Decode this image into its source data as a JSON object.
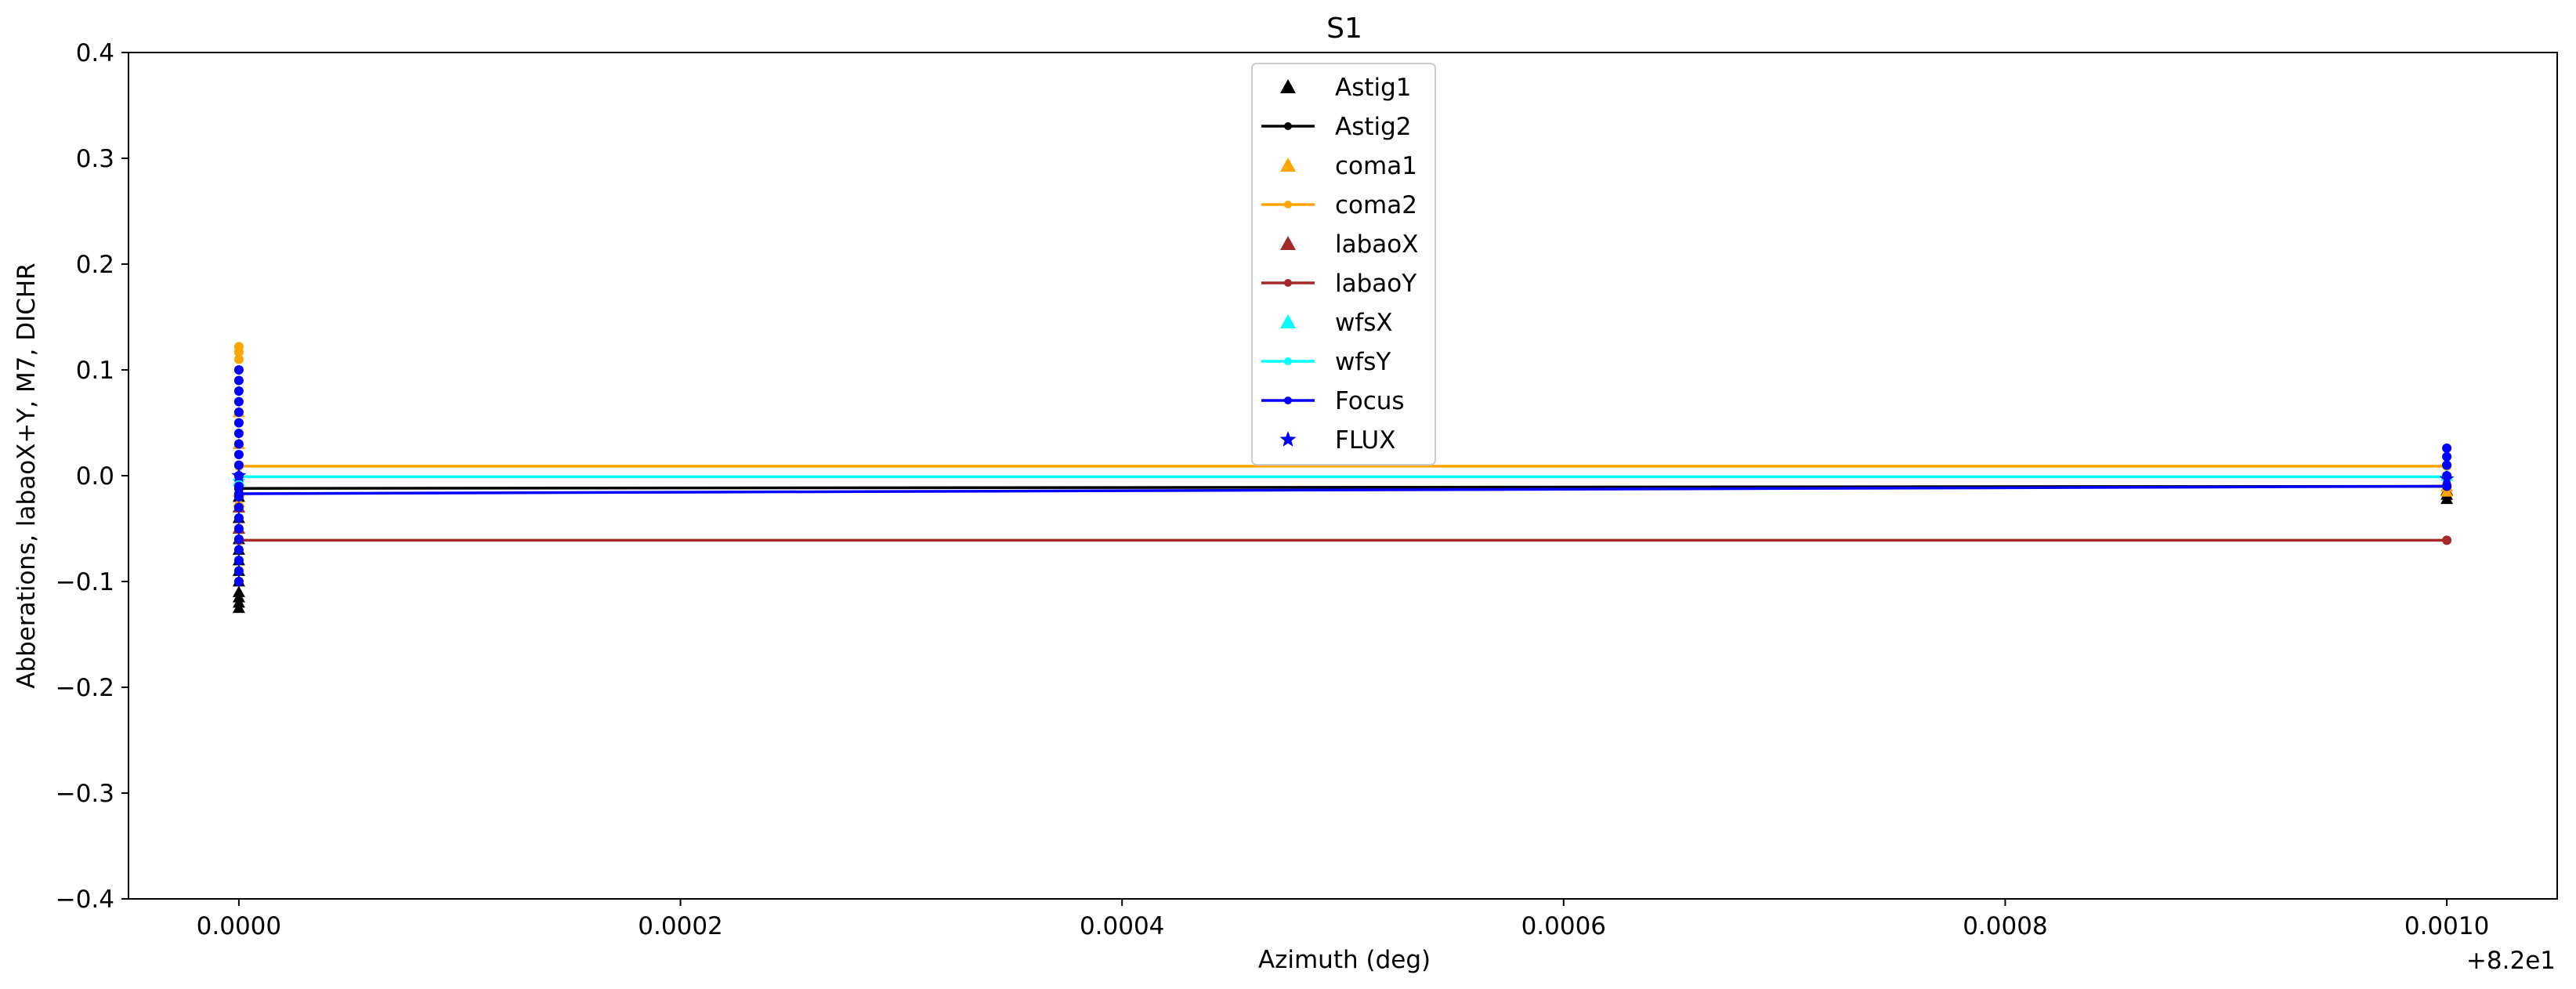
{
  "chart_data": {
    "type": "line",
    "title": "S1",
    "xlabel": "Azimuth (deg)",
    "ylabel": "Abberations, labaoX+Y, M7, DICHR",
    "x_offset_label": "+8.2e1",
    "xlim": [
      -5e-05,
      0.00105
    ],
    "ylim": [
      -0.4,
      0.4
    ],
    "x_ticks": [
      0.0,
      0.0002,
      0.0004,
      0.0006,
      0.0008,
      0.001
    ],
    "x_tick_labels": [
      "0.0000",
      "0.0002",
      "0.0004",
      "0.0006",
      "0.0008",
      "0.0010"
    ],
    "y_ticks": [
      -0.4,
      -0.3,
      -0.2,
      -0.1,
      0.0,
      0.1,
      0.2,
      0.3,
      0.4
    ],
    "y_tick_labels": [
      "−0.4",
      "−0.3",
      "−0.2",
      "−0.1",
      "0.0",
      "0.1",
      "0.2",
      "0.3",
      "0.4"
    ],
    "grid": false,
    "legend_position": "upper-center",
    "series": [
      {
        "name": "Astig1",
        "color": "#000000",
        "marker": "triangle",
        "line": false,
        "points": [
          [
            0.0,
            -0.125
          ],
          [
            0.0,
            -0.12
          ],
          [
            0.0,
            -0.115
          ],
          [
            0.0,
            -0.11
          ],
          [
            0.0,
            -0.1
          ],
          [
            0.0,
            -0.09
          ],
          [
            0.0,
            -0.08
          ],
          [
            0.0,
            -0.07
          ],
          [
            0.0,
            -0.06
          ],
          [
            0.0,
            -0.05
          ],
          [
            0.0,
            -0.04
          ],
          [
            0.0,
            -0.03
          ],
          [
            0.0,
            -0.02
          ],
          [
            0.001,
            -0.022
          ],
          [
            0.001,
            -0.018
          ],
          [
            0.001,
            -0.014
          ]
        ]
      },
      {
        "name": "Astig2",
        "color": "#000000",
        "marker": "dot",
        "line": true,
        "points": [
          [
            0.0,
            -0.012
          ],
          [
            0.001,
            -0.01
          ]
        ]
      },
      {
        "name": "coma1",
        "color": "#ffa500",
        "marker": "triangle",
        "line": false,
        "points": [
          [
            0.0,
            0.06
          ],
          [
            0.0,
            0.03
          ],
          [
            0.0,
            0.0
          ],
          [
            0.0,
            -0.015
          ],
          [
            0.0,
            -0.025
          ],
          [
            0.001,
            -0.015
          ],
          [
            0.001,
            -0.01
          ]
        ]
      },
      {
        "name": "coma2",
        "color": "#ffa500",
        "marker": "dot",
        "line": true,
        "points": [
          [
            0.0,
            0.122
          ],
          [
            0.0,
            0.117
          ],
          [
            0.0,
            0.11
          ],
          [
            0.0,
            0.09
          ],
          [
            0.0,
            0.05
          ],
          [
            0.0,
            0.009
          ],
          [
            0.001,
            0.009
          ]
        ]
      },
      {
        "name": "labaoX",
        "color": "#a52a2a",
        "marker": "triangle",
        "line": false,
        "points": [
          [
            0.0,
            -0.05
          ],
          [
            0.0,
            -0.03
          ]
        ]
      },
      {
        "name": "labaoY",
        "color": "#a52a2a",
        "marker": "dot",
        "line": true,
        "points": [
          [
            0.0,
            -0.061
          ],
          [
            0.001,
            -0.061
          ]
        ]
      },
      {
        "name": "wfsX",
        "color": "#00ffff",
        "marker": "triangle",
        "line": false,
        "points": [
          [
            0.0,
            0.0
          ],
          [
            0.0,
            -0.005
          ],
          [
            0.001,
            0.0
          ]
        ]
      },
      {
        "name": "wfsY",
        "color": "#00ffff",
        "marker": "dot",
        "line": true,
        "points": [
          [
            0.0,
            -0.001
          ],
          [
            0.001,
            -0.001
          ]
        ]
      },
      {
        "name": "Focus",
        "color": "#0000ff",
        "marker": "dot",
        "line": true,
        "points": [
          [
            0.0,
            0.1
          ],
          [
            0.0,
            0.09
          ],
          [
            0.0,
            0.08
          ],
          [
            0.0,
            0.07
          ],
          [
            0.0,
            0.06
          ],
          [
            0.0,
            0.05
          ],
          [
            0.0,
            0.04
          ],
          [
            0.0,
            0.03
          ],
          [
            0.0,
            0.02
          ],
          [
            0.0,
            0.01
          ],
          [
            0.0,
            0.0
          ],
          [
            0.0,
            -0.01
          ],
          [
            0.0,
            -0.02
          ],
          [
            0.0,
            -0.03
          ],
          [
            0.0,
            -0.04
          ],
          [
            0.0,
            -0.05
          ],
          [
            0.0,
            -0.06
          ],
          [
            0.0,
            -0.07
          ],
          [
            0.0,
            -0.08
          ],
          [
            0.0,
            -0.09
          ],
          [
            0.0,
            -0.1
          ],
          [
            0.0,
            -0.017
          ],
          [
            0.001,
            -0.01
          ],
          [
            0.001,
            0.0
          ],
          [
            0.001,
            0.01
          ],
          [
            0.001,
            0.018
          ],
          [
            0.001,
            0.026
          ]
        ]
      },
      {
        "name": "FLUX",
        "color": "#0000ff",
        "marker": "star",
        "line": false,
        "points": [
          [
            0.0,
            0.0
          ],
          [
            0.001,
            -0.003
          ]
        ]
      }
    ]
  }
}
